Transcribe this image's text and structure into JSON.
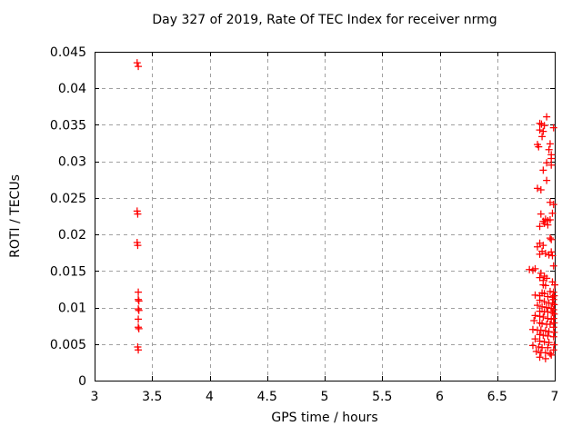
{
  "chart_data": {
    "type": "scatter",
    "title": "Day 327 of 2019, Rate Of TEC Index for receiver nrmg",
    "xlabel": "GPS time / hours",
    "ylabel": "ROTI / TECUs",
    "xlim": [
      3,
      7
    ],
    "ylim": [
      0,
      0.045
    ],
    "xticks": [
      3,
      3.5,
      4,
      4.5,
      5,
      5.5,
      6,
      6.5,
      7
    ],
    "xtick_labels": [
      "3",
      "3.5",
      "4",
      "4.5",
      "5",
      "5.5",
      "6",
      "6.5",
      "7"
    ],
    "yticks": [
      0,
      0.005,
      0.01,
      0.015,
      0.02,
      0.025,
      0.03,
      0.035,
      0.04,
      0.045
    ],
    "ytick_labels": [
      "0",
      "0.005",
      "0.01",
      "0.015",
      "0.02",
      "0.025",
      "0.03",
      "0.035",
      "0.04",
      "0.045"
    ],
    "grid": true,
    "legend": "none",
    "background_color": "#ffffff",
    "axis_color": "#000000",
    "grid_color": "#a0a0a0",
    "marker": {
      "shape": "plus",
      "color": "#ff0000",
      "size": 8
    },
    "series": [
      {
        "name": "ROTI",
        "points": [
          [
            3.37,
            0.0435
          ],
          [
            3.38,
            0.043
          ],
          [
            3.37,
            0.0232
          ],
          [
            3.375,
            0.0228
          ],
          [
            3.37,
            0.0189
          ],
          [
            3.375,
            0.0185
          ],
          [
            3.38,
            0.0121
          ],
          [
            3.38,
            0.0111
          ],
          [
            3.385,
            0.0109
          ],
          [
            3.38,
            0.0098
          ],
          [
            3.385,
            0.0096
          ],
          [
            3.38,
            0.0084
          ],
          [
            3.38,
            0.0073
          ],
          [
            3.385,
            0.0071
          ],
          [
            3.375,
            0.0046
          ],
          [
            3.38,
            0.0042
          ],
          [
            6.93,
            0.0361
          ],
          [
            6.87,
            0.0352
          ],
          [
            6.885,
            0.0351
          ],
          [
            6.91,
            0.0349
          ],
          [
            6.99,
            0.0346
          ],
          [
            6.87,
            0.0343
          ],
          [
            6.9,
            0.0341
          ],
          [
            6.89,
            0.0334
          ],
          [
            6.96,
            0.0324
          ],
          [
            6.85,
            0.0323
          ],
          [
            6.86,
            0.032
          ],
          [
            6.95,
            0.0316
          ],
          [
            6.97,
            0.0309
          ],
          [
            6.97,
            0.0304
          ],
          [
            6.93,
            0.0298
          ],
          [
            6.97,
            0.0295
          ],
          [
            6.9,
            0.0288
          ],
          [
            6.93,
            0.0274
          ],
          [
            6.85,
            0.0263
          ],
          [
            6.88,
            0.0261
          ],
          [
            6.96,
            0.0244
          ],
          [
            6.99,
            0.0241
          ],
          [
            6.98,
            0.0229
          ],
          [
            6.88,
            0.0228
          ],
          [
            6.92,
            0.0221
          ],
          [
            6.96,
            0.022
          ],
          [
            6.94,
            0.0219
          ],
          [
            6.9,
            0.0218
          ],
          [
            6.91,
            0.0215
          ],
          [
            6.94,
            0.0213
          ],
          [
            6.87,
            0.0211
          ],
          [
            6.96,
            0.0195
          ],
          [
            6.97,
            0.0193
          ],
          [
            6.87,
            0.0188
          ],
          [
            6.9,
            0.0185
          ],
          [
            6.85,
            0.0183
          ],
          [
            6.89,
            0.0177
          ],
          [
            6.97,
            0.0176
          ],
          [
            6.92,
            0.0174
          ],
          [
            6.87,
            0.0173
          ],
          [
            6.95,
            0.0172
          ],
          [
            6.98,
            0.0171
          ],
          [
            6.99,
            0.0157
          ],
          [
            6.83,
            0.0153
          ],
          [
            6.78,
            0.0152
          ],
          [
            6.81,
            0.0151
          ],
          [
            6.88,
            0.0147
          ],
          [
            6.91,
            0.0143
          ],
          [
            6.87,
            0.0141
          ],
          [
            6.93,
            0.014
          ],
          [
            6.9,
            0.0137
          ],
          [
            6.98,
            0.0135
          ],
          [
            6.9,
            0.0131
          ],
          [
            7.0,
            0.0131
          ],
          [
            6.92,
            0.013
          ],
          [
            6.96,
            0.0122
          ],
          [
            6.99,
            0.0121
          ],
          [
            6.89,
            0.012
          ],
          [
            6.91,
            0.0119
          ],
          [
            6.83,
            0.0117
          ],
          [
            6.87,
            0.0116
          ],
          [
            6.995,
            0.0116
          ],
          [
            6.94,
            0.0115
          ],
          [
            6.98,
            0.0114
          ],
          [
            6.99,
            0.0111
          ],
          [
            6.87,
            0.011
          ],
          [
            6.91,
            0.0108
          ],
          [
            6.95,
            0.0106
          ],
          [
            6.98,
            0.0106
          ],
          [
            6.995,
            0.0104
          ],
          [
            6.85,
            0.0103
          ],
          [
            6.89,
            0.0101
          ],
          [
            6.93,
            0.01
          ],
          [
            6.97,
            0.0099
          ],
          [
            6.99,
            0.0097
          ],
          [
            6.87,
            0.0095
          ],
          [
            6.91,
            0.0094
          ],
          [
            6.94,
            0.0094
          ],
          [
            6.98,
            0.0093
          ],
          [
            6.995,
            0.0091
          ],
          [
            6.83,
            0.0089
          ],
          [
            6.87,
            0.0088
          ],
          [
            6.9,
            0.0087
          ],
          [
            6.94,
            0.0085
          ],
          [
            6.99,
            0.0085
          ],
          [
            6.97,
            0.0084
          ],
          [
            6.82,
            0.0082
          ],
          [
            6.87,
            0.0079
          ],
          [
            6.995,
            0.0079
          ],
          [
            6.89,
            0.0078
          ],
          [
            6.93,
            0.0077
          ],
          [
            6.96,
            0.0077
          ],
          [
            6.99,
            0.0073
          ],
          [
            6.81,
            0.007
          ],
          [
            6.85,
            0.0069
          ],
          [
            6.88,
            0.0069
          ],
          [
            6.92,
            0.0068
          ],
          [
            6.95,
            0.0067
          ],
          [
            6.995,
            0.0066
          ],
          [
            6.87,
            0.0063
          ],
          [
            6.9,
            0.0062
          ],
          [
            6.94,
            0.0061
          ],
          [
            6.99,
            0.006
          ],
          [
            6.83,
            0.0057
          ],
          [
            6.87,
            0.0054
          ],
          [
            6.91,
            0.0053
          ],
          [
            6.95,
            0.0052
          ],
          [
            6.995,
            0.0049
          ],
          [
            6.81,
            0.0048
          ],
          [
            6.86,
            0.0046
          ],
          [
            6.89,
            0.0045
          ],
          [
            6.94,
            0.0045
          ],
          [
            6.99,
            0.0042
          ],
          [
            6.84,
            0.004
          ],
          [
            6.88,
            0.0038
          ],
          [
            6.92,
            0.0038
          ],
          [
            6.96,
            0.0037
          ],
          [
            6.97,
            0.0035
          ],
          [
            6.87,
            0.0032
          ],
          [
            6.92,
            0.003
          ]
        ]
      }
    ]
  }
}
